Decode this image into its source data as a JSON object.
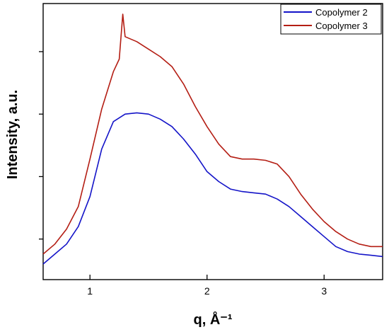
{
  "chart_data": {
    "type": "line",
    "xlabel": "q, Å⁻¹",
    "ylabel": "Intensity, a.u.",
    "xlim": [
      0.6,
      3.5
    ],
    "ylim": [
      0,
      1
    ],
    "x_ticks": [
      1,
      2,
      3
    ],
    "x_tick_labels": [
      "1",
      "2",
      "3"
    ],
    "y_tick_labels_shown": false,
    "y_ticks": [
      0.1,
      0.35,
      0.6,
      0.85
    ],
    "legend_position": "top-right",
    "grid": false,
    "series": [
      {
        "name": "Copolymer 2",
        "color": "#1414c8",
        "x": [
          0.6,
          0.7,
          0.8,
          0.9,
          1.0,
          1.1,
          1.2,
          1.3,
          1.4,
          1.5,
          1.6,
          1.7,
          1.8,
          1.9,
          2.0,
          2.1,
          2.2,
          2.3,
          2.4,
          2.5,
          2.6,
          2.7,
          2.8,
          2.9,
          3.0,
          3.1,
          3.2,
          3.3,
          3.4,
          3.5
        ],
        "values": [
          0.0,
          0.04,
          0.08,
          0.15,
          0.27,
          0.46,
          0.57,
          0.6,
          0.605,
          0.6,
          0.58,
          0.55,
          0.5,
          0.44,
          0.37,
          0.33,
          0.3,
          0.29,
          0.285,
          0.28,
          0.26,
          0.23,
          0.19,
          0.15,
          0.11,
          0.07,
          0.05,
          0.04,
          0.035,
          0.03
        ]
      },
      {
        "name": "Copolymer 3",
        "color": "#b41e14",
        "x": [
          0.6,
          0.7,
          0.8,
          0.9,
          1.0,
          1.1,
          1.2,
          1.25,
          1.28,
          1.3,
          1.35,
          1.4,
          1.5,
          1.6,
          1.7,
          1.8,
          1.9,
          2.0,
          2.1,
          2.2,
          2.3,
          2.4,
          2.5,
          2.6,
          2.7,
          2.8,
          2.9,
          3.0,
          3.1,
          3.2,
          3.3,
          3.4,
          3.5
        ],
        "values": [
          0.04,
          0.08,
          0.14,
          0.23,
          0.42,
          0.62,
          0.77,
          0.82,
          1.0,
          0.91,
          0.9,
          0.89,
          0.86,
          0.83,
          0.79,
          0.72,
          0.63,
          0.55,
          0.48,
          0.43,
          0.42,
          0.42,
          0.415,
          0.4,
          0.35,
          0.28,
          0.22,
          0.17,
          0.13,
          0.1,
          0.08,
          0.07,
          0.07
        ]
      }
    ]
  }
}
